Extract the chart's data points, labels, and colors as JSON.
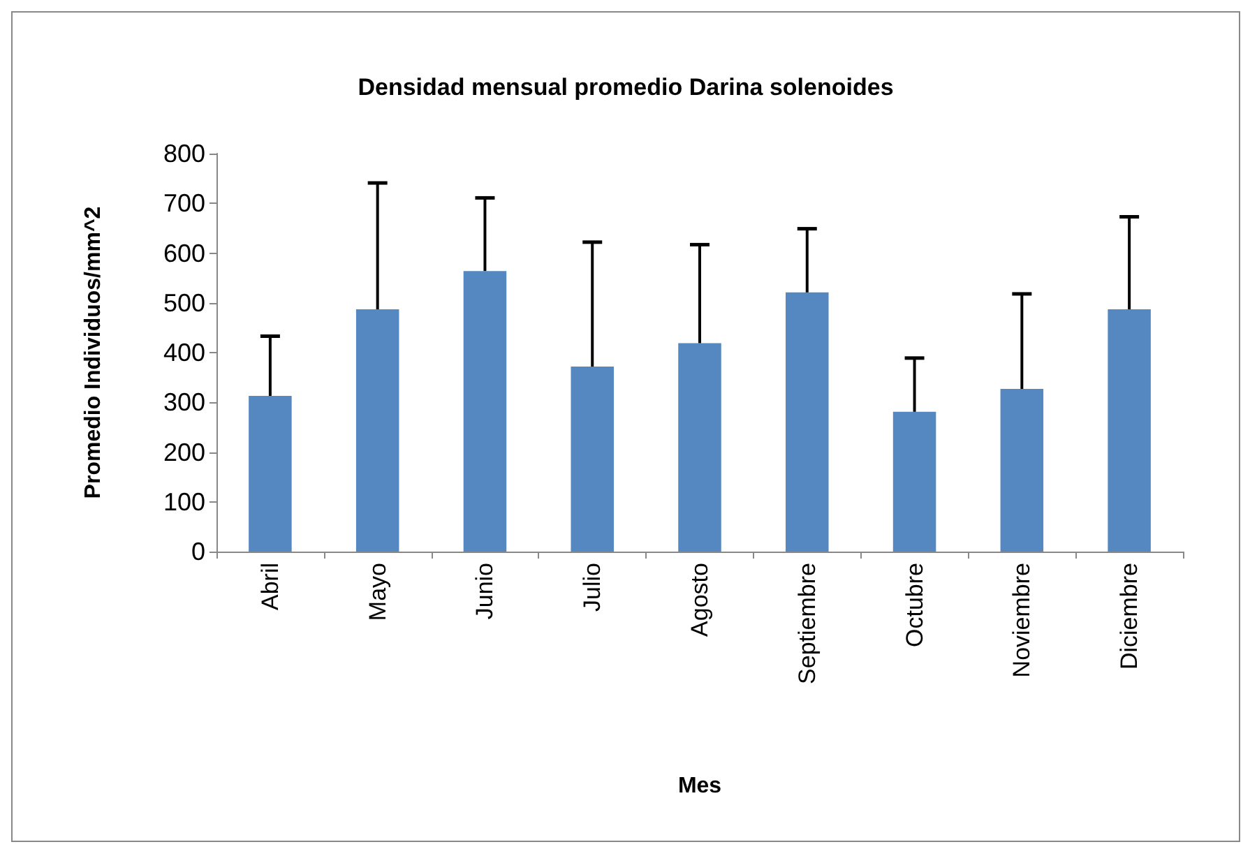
{
  "chart_data": {
    "type": "bar",
    "title": "Densidad mensual promedio Darina solenoides",
    "xlabel": "Mes",
    "ylabel": "Promedio Individuos/mm^2",
    "categories": [
      "Abril",
      "Mayo",
      "Junio",
      "Julio",
      "Agosto",
      "Septiembre",
      "Octubre",
      "Noviembre",
      "Diciembre"
    ],
    "values": [
      313,
      487,
      564,
      372,
      419,
      521,
      281,
      327,
      487
    ],
    "errors": [
      [
        313,
        433
      ],
      [
        487,
        741
      ],
      [
        564,
        711
      ],
      [
        372,
        622
      ],
      [
        419,
        617
      ],
      [
        521,
        649
      ],
      [
        281,
        389
      ],
      [
        327,
        518
      ],
      [
        487,
        673
      ]
    ],
    "color": "#5587c0",
    "ylim": [
      0,
      800
    ],
    "yticks": [
      0,
      100,
      200,
      300,
      400,
      500,
      600,
      700,
      800
    ],
    "grid": false
  }
}
